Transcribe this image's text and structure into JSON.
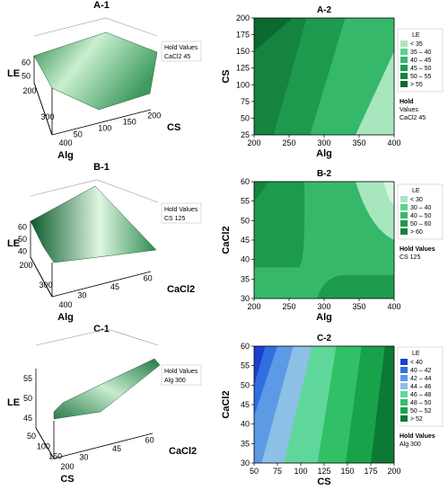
{
  "colors": {
    "surface_light": "#d7f3dc",
    "surface_dark": "#0c5a2e",
    "axis": "#000000",
    "contour_green": [
      "#a8e6be",
      "#5fcf8f",
      "#35b86a",
      "#1e9a4e",
      "#14843f",
      "#0b6a30"
    ],
    "contour_blue": [
      "#1d3fd1",
      "#2f6fe0",
      "#5d9ae6",
      "#8cc0e6",
      "#5fd69a",
      "#32c066",
      "#18a34b",
      "#0c7a34"
    ]
  },
  "chart_data": [
    {
      "id": "A-1",
      "type": "surface3d",
      "title": "A-1",
      "xlabel": "Alg",
      "xticks": [
        "200",
        "300",
        "400"
      ],
      "ylabel": "CS",
      "yticks": [
        "50",
        "100",
        "150",
        "200"
      ],
      "zlabel": "LE",
      "zticks": [
        "50",
        "60"
      ],
      "hold_text": [
        "Hold Values",
        "CaCl2  45"
      ]
    },
    {
      "id": "A-2",
      "type": "contour",
      "title": "A-2",
      "xlabel": "Alg",
      "xticks": [
        "200",
        "250",
        "300",
        "350",
        "400"
      ],
      "xlim": [
        200,
        400
      ],
      "ylabel": "CS",
      "yticks": [
        "25",
        "50",
        "75",
        "100",
        "125",
        "150",
        "175",
        "200"
      ],
      "ylim": [
        25,
        200
      ],
      "legend_title": "LE",
      "legend": [
        "< 35",
        "35 – 40",
        "40 – 45",
        "45 – 50",
        "50 – 55",
        "> 55"
      ],
      "hold_text": [
        "Hold",
        "Values",
        "CaCl2  45"
      ]
    },
    {
      "id": "B-1",
      "type": "surface3d",
      "title": "B-1",
      "xlabel": "Alg",
      "xticks": [
        "200",
        "300",
        "400"
      ],
      "ylabel": "CaCl2",
      "yticks": [
        "30",
        "45",
        "60"
      ],
      "zlabel": "LE",
      "zticks": [
        "40",
        "50",
        "60"
      ],
      "hold_text": [
        "Hold Values",
        "CS  125"
      ]
    },
    {
      "id": "B-2",
      "type": "contour",
      "title": "B-2",
      "xlabel": "Alg",
      "xticks": [
        "200",
        "250",
        "300",
        "350",
        "400"
      ],
      "xlim": [
        200,
        400
      ],
      "ylabel": "CaCl2",
      "yticks": [
        "30",
        "35",
        "40",
        "45",
        "50",
        "55",
        "60"
      ],
      "ylim": [
        30,
        60
      ],
      "legend_title": "LE",
      "legend": [
        "< 30",
        "30 – 40",
        "40 – 50",
        "50 – 60",
        "> 60"
      ],
      "hold_text": [
        "Hold Values",
        "CS  125"
      ]
    },
    {
      "id": "C-1",
      "type": "surface3d",
      "title": "C-1",
      "xlabel": "CS",
      "xticks": [
        "50",
        "100",
        "150",
        "200"
      ],
      "ylabel": "CaCl2",
      "yticks": [
        "30",
        "45",
        "60"
      ],
      "zlabel": "LE",
      "zticks": [
        "45",
        "50",
        "55"
      ],
      "hold_text": [
        "Hold Values",
        "Alg  300"
      ]
    },
    {
      "id": "C-2",
      "type": "contour",
      "title": "C-2",
      "xlabel": "CS",
      "xticks": [
        "50",
        "75",
        "100",
        "125",
        "150",
        "175",
        "200"
      ],
      "xlim": [
        50,
        200
      ],
      "ylabel": "CaCl2",
      "yticks": [
        "30",
        "35",
        "40",
        "45",
        "50",
        "55",
        "60"
      ],
      "ylim": [
        30,
        60
      ],
      "legend_title": "LE",
      "legend": [
        "< 40",
        "40 – 42",
        "42 – 44",
        "44 – 46",
        "46 – 48",
        "48 – 50",
        "50 – 52",
        "> 52"
      ],
      "hold_text": [
        "Hold Values",
        "Alg  300"
      ]
    }
  ]
}
